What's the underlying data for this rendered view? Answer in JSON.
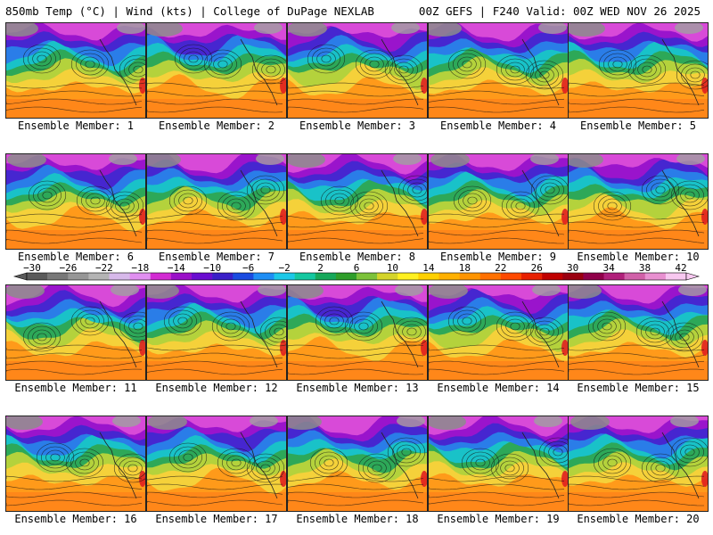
{
  "header": {
    "left": "850mb Temp (°C) | Wind (kts) | College of DuPage NEXLAB",
    "right": "00Z GEFS | F240 Valid: 00Z WED NOV 26 2025"
  },
  "members": [
    {
      "label": "Ensemble Member: 1"
    },
    {
      "label": "Ensemble Member: 2"
    },
    {
      "label": "Ensemble Member: 3"
    },
    {
      "label": "Ensemble Member: 4"
    },
    {
      "label": "Ensemble Member: 5"
    },
    {
      "label": "Ensemble Member: 6"
    },
    {
      "label": "Ensemble Member: 7"
    },
    {
      "label": "Ensemble Member: 8"
    },
    {
      "label": "Ensemble Member: 9"
    },
    {
      "label": "Ensemble Member: 10"
    },
    {
      "label": "Ensemble Member: 11"
    },
    {
      "label": "Ensemble Member: 12"
    },
    {
      "label": "Ensemble Member: 13"
    },
    {
      "label": "Ensemble Member: 14"
    },
    {
      "label": "Ensemble Member: 15"
    },
    {
      "label": "Ensemble Member: 16"
    },
    {
      "label": "Ensemble Member: 17"
    },
    {
      "label": "Ensemble Member: 18"
    },
    {
      "label": "Ensemble Member: 19"
    },
    {
      "label": "Ensemble Member: 20"
    }
  ],
  "colorbar": {
    "tick_labels": [
      "-30",
      "-26",
      "-22",
      "-18",
      "-14",
      "-10",
      "-6",
      "-2",
      "2",
      "6",
      "10",
      "14",
      "18",
      "22",
      "26",
      "30",
      "34",
      "38",
      "42"
    ],
    "colors": [
      "#5a5a5a",
      "#787878",
      "#969696",
      "#b4b4b4",
      "#d7b9ea",
      "#e08ff0",
      "#d22bd2",
      "#9a10c8",
      "#6a0dd0",
      "#3a1fc8",
      "#1a4be0",
      "#1e8ef5",
      "#1cc8e8",
      "#14c8a0",
      "#17a85a",
      "#2f9e2a",
      "#7cc23a",
      "#d4d42a",
      "#fff020",
      "#ffd000",
      "#ffb000",
      "#ff9400",
      "#ff7000",
      "#ff4a00",
      "#e82000",
      "#c00000",
      "#9a0010",
      "#90004a",
      "#b0207a",
      "#d060a8",
      "#e890d0",
      "#f8c8f0"
    ]
  }
}
